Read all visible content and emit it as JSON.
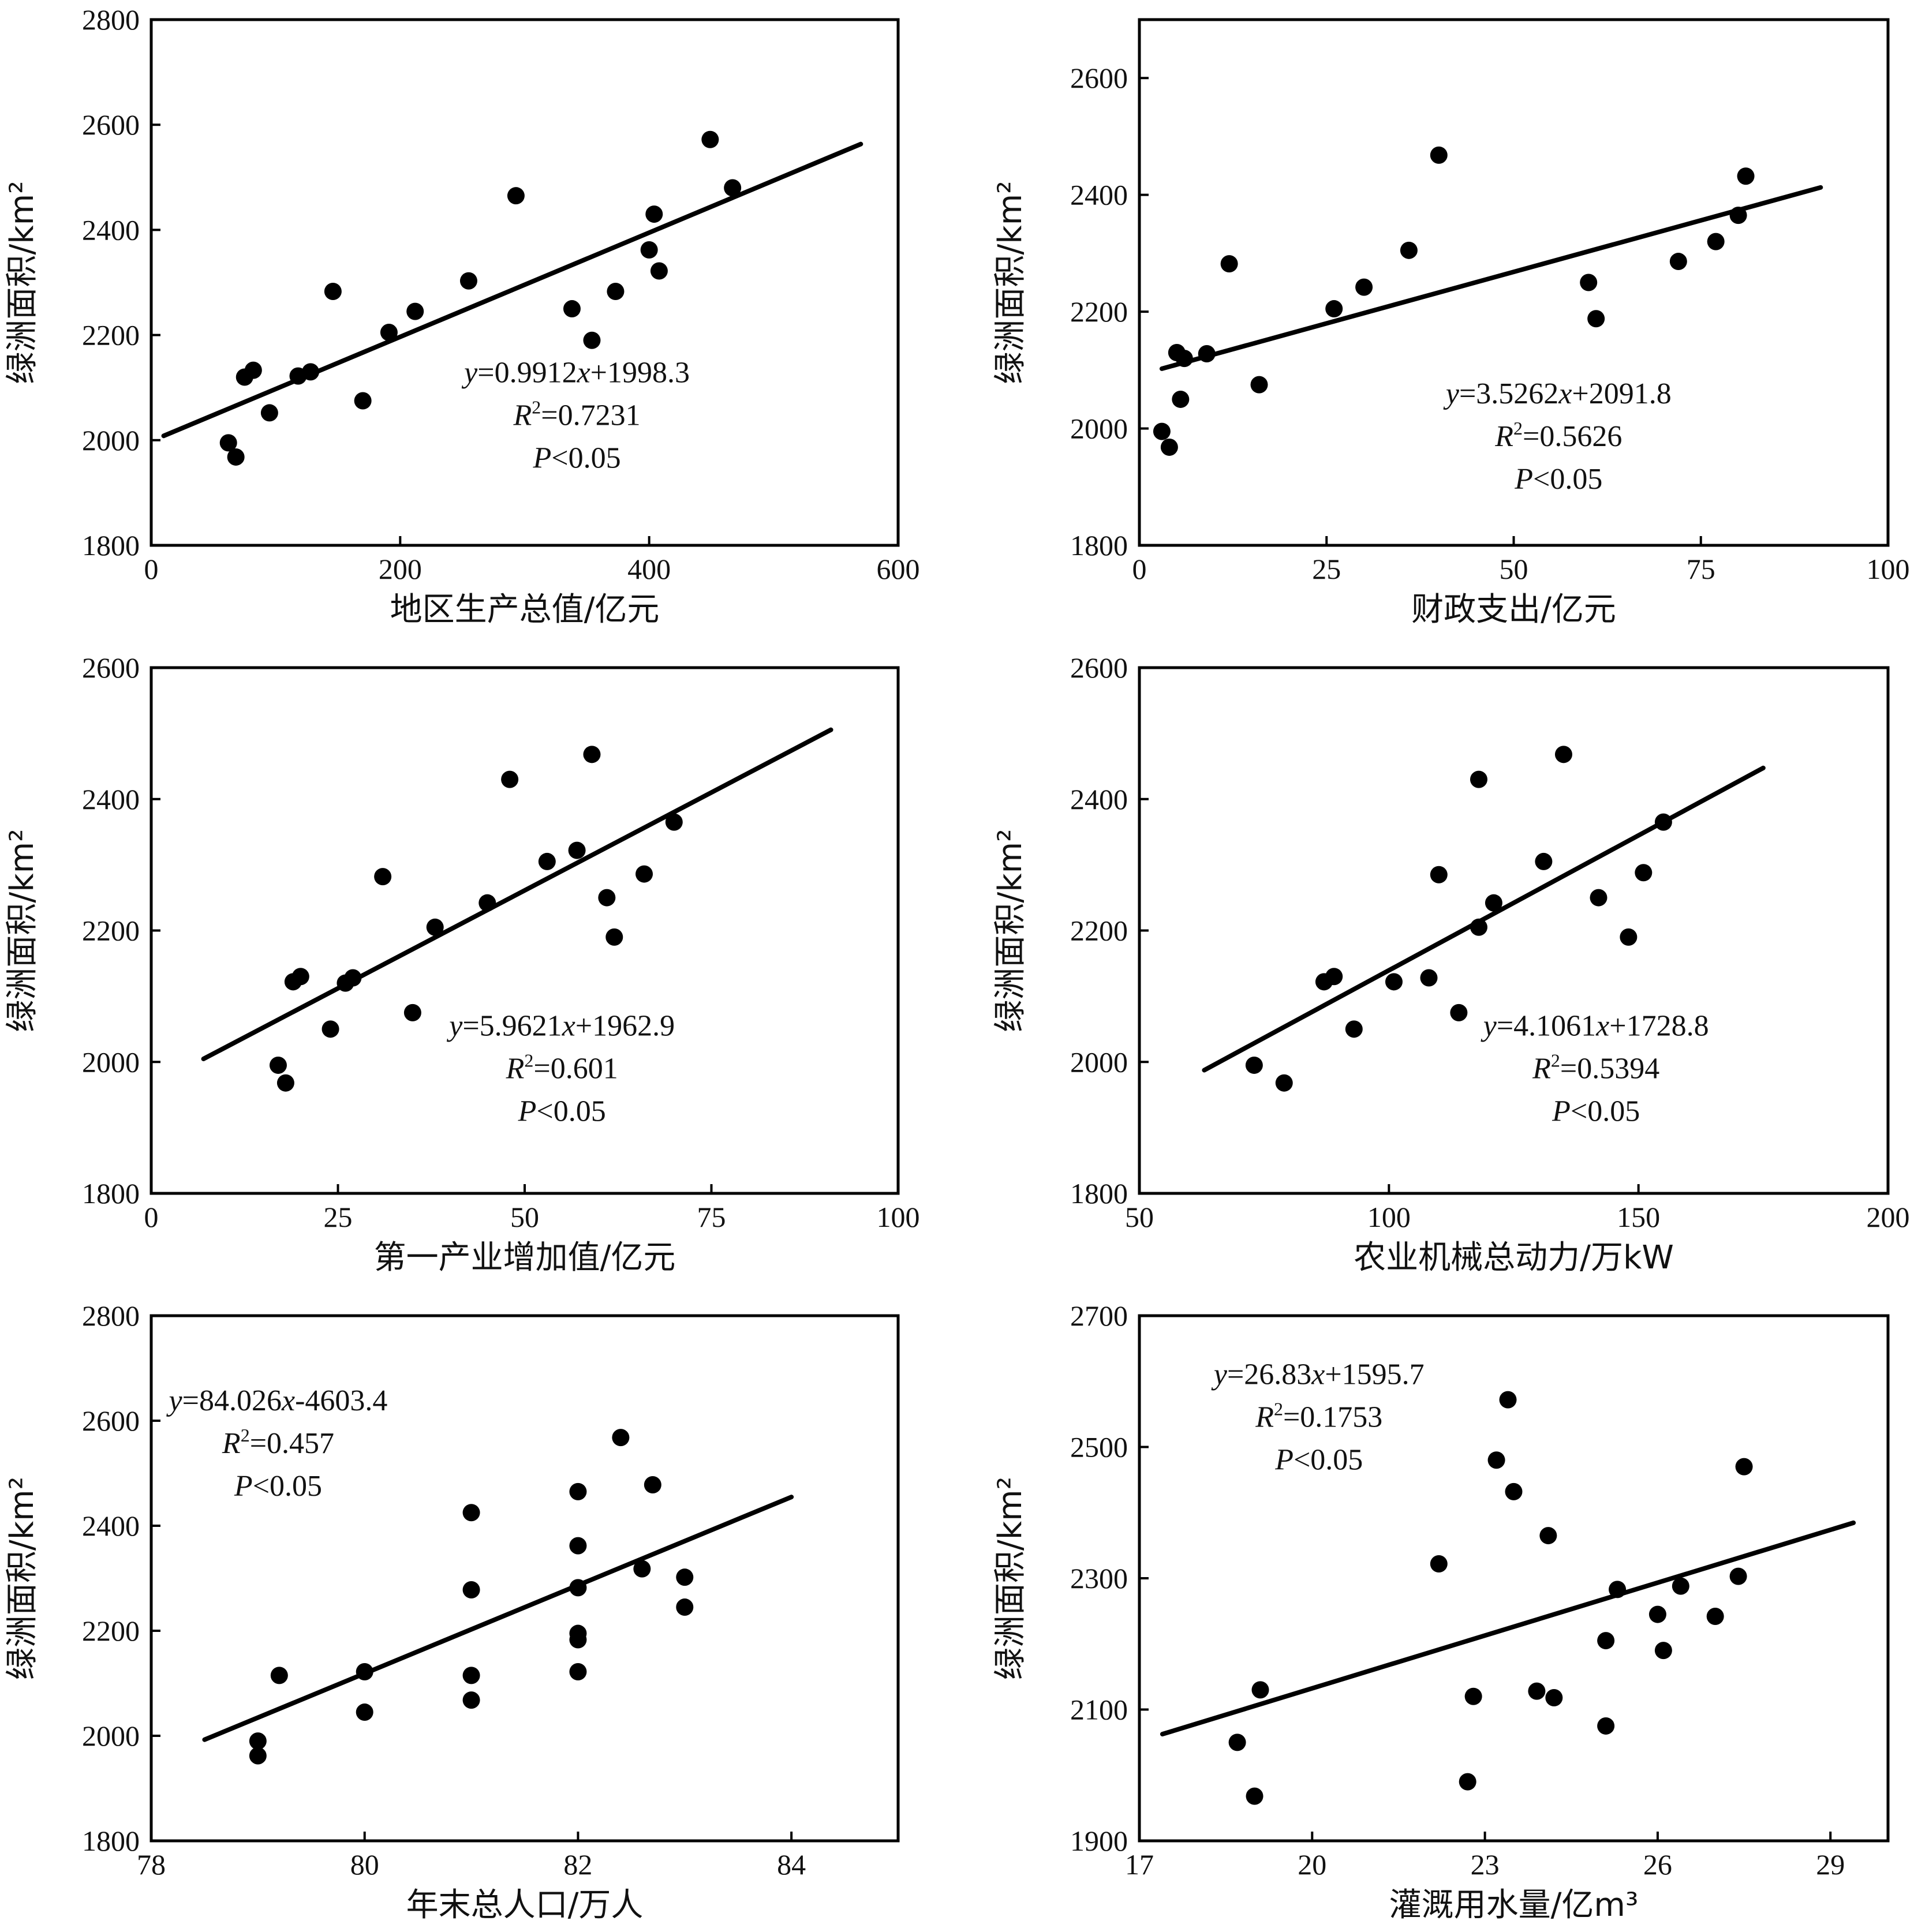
{
  "chart_data": [
    {
      "type": "scatter",
      "xlabel": "地区生产总值/亿元",
      "ylabel": "绿洲面积/km²",
      "xlim": [
        0,
        600
      ],
      "ylim": [
        1800,
        2800
      ],
      "xticks": [
        0,
        200,
        400,
        600
      ],
      "yticks": [
        1800,
        2000,
        2200,
        2400,
        2600,
        2800
      ],
      "points": [
        [
          62,
          1995
        ],
        [
          68,
          1968
        ],
        [
          75,
          2120
        ],
        [
          82,
          2133
        ],
        [
          95,
          2052
        ],
        [
          118,
          2122
        ],
        [
          128,
          2130
        ],
        [
          146,
          2283
        ],
        [
          170,
          2075
        ],
        [
          191,
          2205
        ],
        [
          212,
          2245
        ],
        [
          255,
          2303
        ],
        [
          293,
          2465
        ],
        [
          338,
          2250
        ],
        [
          354,
          2190
        ],
        [
          373,
          2283
        ],
        [
          400,
          2362
        ],
        [
          404,
          2430
        ],
        [
          408,
          2322
        ],
        [
          449,
          2572
        ],
        [
          467,
          2480
        ]
      ],
      "fit": {
        "x": [
          10,
          570
        ]
      },
      "equation_parts": {
        "y": "y",
        "eq": "=0.9912",
        "x": "x",
        "rest": "+1998.3"
      },
      "r2_parts": {
        "r": "R",
        "sup": "2",
        "val": "=0.7231"
      },
      "p_parts": {
        "p": "P",
        "val": "<0.05"
      }
    },
    {
      "type": "scatter",
      "xlabel": "财政支出/亿元",
      "ylabel": "绿洲面积/km²",
      "xlim": [
        0,
        100
      ],
      "ylim": [
        1800,
        2700
      ],
      "xticks": [
        0,
        25,
        50,
        75,
        100
      ],
      "yticks": [
        1800,
        2000,
        2200,
        2400,
        2600
      ],
      "points": [
        [
          3,
          1995
        ],
        [
          4,
          1968
        ],
        [
          5,
          2130
        ],
        [
          5.5,
          2050
        ],
        [
          6,
          2120
        ],
        [
          9,
          2128
        ],
        [
          12,
          2282
        ],
        [
          16,
          2075
        ],
        [
          26,
          2205
        ],
        [
          30,
          2242
        ],
        [
          36,
          2305
        ],
        [
          40,
          2468
        ],
        [
          60,
          2250
        ],
        [
          61,
          2188
        ],
        [
          72,
          2286
        ],
        [
          77,
          2320
        ],
        [
          80,
          2365
        ],
        [
          81,
          2432
        ]
      ],
      "fit": {
        "x": [
          3,
          91
        ]
      },
      "equation_parts": {
        "y": "y",
        "eq": "=3.5262",
        "x": "x",
        "rest": "+2091.8"
      },
      "r2_parts": {
        "r": "R",
        "sup": "2",
        "val": "=0.5626"
      },
      "p_parts": {
        "p": "P",
        "val": "<0.05"
      }
    },
    {
      "type": "scatter",
      "xlabel": "第一产业增加值/亿元",
      "ylabel": "绿洲面积/km²",
      "xlim": [
        0,
        100
      ],
      "ylim": [
        1800,
        2600
      ],
      "xticks": [
        0,
        25,
        50,
        75,
        100
      ],
      "yticks": [
        1800,
        2000,
        2200,
        2400,
        2600
      ],
      "points": [
        [
          17,
          1995
        ],
        [
          18,
          1968
        ],
        [
          19,
          2122
        ],
        [
          20,
          2130
        ],
        [
          24,
          2050
        ],
        [
          26,
          2120
        ],
        [
          27,
          2128
        ],
        [
          31,
          2282
        ],
        [
          35,
          2075
        ],
        [
          38,
          2205
        ],
        [
          45,
          2242
        ],
        [
          48,
          2430
        ],
        [
          53,
          2305
        ],
        [
          57,
          2322
        ],
        [
          59,
          2468
        ],
        [
          61,
          2250
        ],
        [
          62,
          2190
        ],
        [
          66,
          2286
        ],
        [
          70,
          2365
        ]
      ],
      "fit": {
        "x": [
          7,
          91
        ]
      },
      "equation_parts": {
        "y": "y",
        "eq": "=5.9621",
        "x": "x",
        "rest": "+1962.9"
      },
      "r2_parts": {
        "r": "R",
        "sup": "2",
        "val": "=0.601"
      },
      "p_parts": {
        "p": "P",
        "val": "<0.05"
      }
    },
    {
      "type": "scatter",
      "xlabel": "农业机械总动力/万kW",
      "ylabel": "绿洲面积/km²",
      "xlim": [
        50,
        200
      ],
      "ylim": [
        1800,
        2600
      ],
      "xticks": [
        50,
        100,
        150,
        200
      ],
      "yticks": [
        1800,
        2000,
        2200,
        2400,
        2600
      ],
      "points": [
        [
          73,
          1995
        ],
        [
          79,
          1968
        ],
        [
          87,
          2122
        ],
        [
          89,
          2130
        ],
        [
          93,
          2050
        ],
        [
          101,
          2122
        ],
        [
          108,
          2128
        ],
        [
          110,
          2285
        ],
        [
          114,
          2075
        ],
        [
          118,
          2205
        ],
        [
          118,
          2430
        ],
        [
          121,
          2242
        ],
        [
          131,
          2305
        ],
        [
          135,
          2468
        ],
        [
          142,
          2250
        ],
        [
          148,
          2190
        ],
        [
          151,
          2288
        ],
        [
          155,
          2365
        ]
      ],
      "fit": {
        "x": [
          63,
          175
        ]
      },
      "equation_parts": {
        "y": "y",
        "eq": "=4.1061",
        "x": "x",
        "rest": "+1728.8"
      },
      "r2_parts": {
        "r": "R",
        "sup": "2",
        "val": "=0.5394"
      },
      "p_parts": {
        "p": "P",
        "val": "<0.05"
      }
    },
    {
      "type": "scatter",
      "xlabel": "年末总人口/万人",
      "ylabel": "绿洲面积/km²",
      "xlim": [
        78,
        85
      ],
      "ylim": [
        1800,
        2800
      ],
      "xticks": [
        78,
        80,
        82,
        84
      ],
      "yticks": [
        1800,
        2000,
        2200,
        2400,
        2600,
        2800
      ],
      "points": [
        [
          79,
          1990
        ],
        [
          79,
          1962
        ],
        [
          79.2,
          2115
        ],
        [
          80,
          2122
        ],
        [
          80,
          2045
        ],
        [
          81,
          2425
        ],
        [
          81,
          2278
        ],
        [
          81,
          2115
        ],
        [
          81,
          2068
        ],
        [
          82,
          2465
        ],
        [
          82,
          2362
        ],
        [
          82,
          2282
        ],
        [
          82,
          2195
        ],
        [
          82,
          2183
        ],
        [
          82,
          2122
        ],
        [
          82.4,
          2568
        ],
        [
          82.6,
          2318
        ],
        [
          82.7,
          2478
        ],
        [
          83,
          2302
        ],
        [
          83,
          2245
        ]
      ],
      "fit": {
        "x": [
          78.5,
          84
        ]
      },
      "equation_parts": {
        "y": "y",
        "eq": "=84.026",
        "x": "x",
        "rest": "-4603.4"
      },
      "r2_parts": {
        "r": "R",
        "sup": "2",
        "val": "=0.457"
      },
      "p_parts": {
        "p": "P",
        "val": "<0.05"
      }
    },
    {
      "type": "scatter",
      "xlabel": "灌溉用水量/亿m³",
      "ylabel": "绿洲面积/km²",
      "xlim": [
        17,
        30
      ],
      "ylim": [
        1900,
        2700
      ],
      "xticks": [
        17,
        20,
        23,
        26,
        29
      ],
      "yticks": [
        1900,
        2100,
        2300,
        2500,
        2700
      ],
      "points": [
        [
          18.7,
          2050
        ],
        [
          19,
          1968
        ],
        [
          19.1,
          2130
        ],
        [
          22.2,
          2322
        ],
        [
          22.7,
          1990
        ],
        [
          22.8,
          2120
        ],
        [
          23.2,
          2480
        ],
        [
          23.4,
          2572
        ],
        [
          23.5,
          2432
        ],
        [
          23.9,
          2128
        ],
        [
          24.1,
          2365
        ],
        [
          24.2,
          2118
        ],
        [
          25.1,
          2075
        ],
        [
          25.1,
          2205
        ],
        [
          25.3,
          2283
        ],
        [
          26,
          2245
        ],
        [
          26.1,
          2190
        ],
        [
          26.4,
          2288
        ],
        [
          27,
          2242
        ],
        [
          27.4,
          2303
        ],
        [
          27.5,
          2470
        ]
      ],
      "fit": {
        "x": [
          17.4,
          29.4
        ]
      },
      "equation_parts": {
        "y": "y",
        "eq": "=26.83",
        "x": "x",
        "rest": "+1595.7"
      },
      "r2_parts": {
        "r": "R",
        "sup": "2",
        "val": "=0.1753"
      },
      "p_parts": {
        "p": "P",
        "val": "<0.05"
      }
    }
  ]
}
